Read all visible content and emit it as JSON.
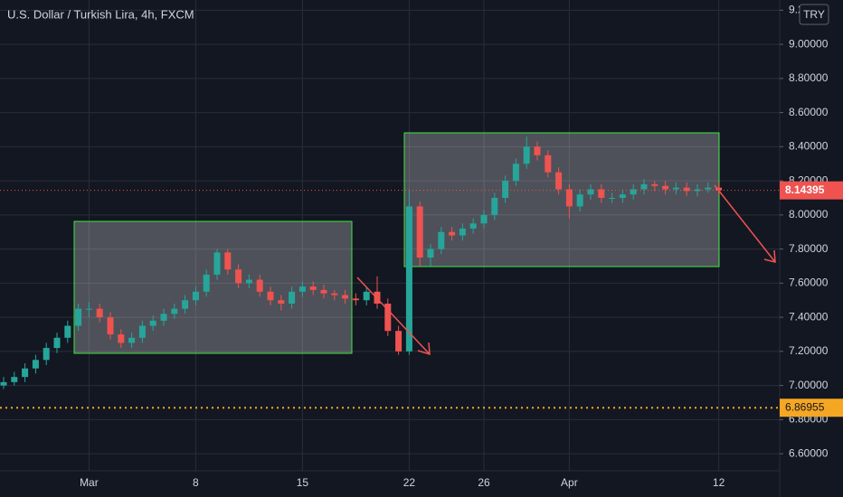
{
  "chart_data": {
    "type": "candlestick",
    "title": "U.S. Dollar / Turkish Lira, 4h, FXCM",
    "currency": "TRY",
    "categories": [
      null,
      null,
      null,
      null,
      null,
      null,
      null,
      null,
      "Mar",
      null,
      null,
      null,
      null,
      null,
      null,
      null,
      null,
      null,
      "8",
      null,
      null,
      null,
      null,
      null,
      null,
      null,
      null,
      null,
      "15",
      null,
      null,
      null,
      null,
      null,
      null,
      null,
      null,
      null,
      "22",
      null,
      null,
      null,
      null,
      null,
      null,
      "26",
      null,
      null,
      null,
      null,
      null,
      null,
      null,
      "Apr",
      null,
      null,
      null,
      null,
      null,
      null,
      null,
      null,
      null,
      null,
      null,
      null,
      null,
      "12"
    ],
    "open": [
      7.0,
      7.02,
      7.05,
      7.1,
      7.15,
      7.22,
      7.28,
      7.35,
      7.45,
      7.45,
      7.4,
      7.3,
      7.25,
      7.28,
      7.35,
      7.38,
      7.42,
      7.45,
      7.5,
      7.55,
      7.65,
      7.78,
      7.68,
      7.6,
      7.62,
      7.55,
      7.5,
      7.48,
      7.55,
      7.58,
      7.56,
      7.54,
      7.53,
      7.51,
      7.5,
      7.55,
      7.48,
      7.32,
      7.2,
      8.05,
      7.75,
      7.8,
      7.9,
      7.88,
      7.92,
      7.95,
      8.0,
      8.1,
      8.2,
      8.3,
      8.4,
      8.35,
      8.25,
      8.15,
      8.05,
      8.12,
      8.15,
      8.1,
      8.1,
      8.12,
      8.15,
      8.18,
      8.17,
      8.15,
      8.16,
      8.14,
      8.15,
      8.16
    ],
    "high": [
      7.05,
      7.08,
      7.13,
      7.18,
      7.25,
      7.31,
      7.38,
      7.48,
      7.49,
      7.48,
      7.43,
      7.33,
      7.31,
      7.38,
      7.41,
      7.45,
      7.48,
      7.53,
      7.58,
      7.68,
      7.8,
      7.8,
      7.71,
      7.65,
      7.65,
      7.58,
      7.53,
      7.58,
      7.61,
      7.61,
      7.59,
      7.56,
      7.56,
      7.54,
      7.58,
      7.64,
      7.51,
      7.35,
      8.15,
      8.08,
      7.83,
      7.93,
      7.93,
      7.95,
      7.98,
      8.03,
      8.13,
      8.23,
      8.33,
      8.46,
      8.43,
      8.38,
      8.28,
      8.18,
      8.15,
      8.18,
      8.18,
      8.13,
      8.15,
      8.18,
      8.21,
      8.2,
      8.2,
      8.19,
      8.19,
      8.18,
      8.19,
      8.19
    ],
    "low": [
      6.98,
      7.0,
      7.02,
      7.07,
      7.12,
      7.19,
      7.25,
      7.32,
      7.4,
      7.37,
      7.27,
      7.22,
      7.22,
      7.25,
      7.32,
      7.35,
      7.39,
      7.42,
      7.47,
      7.52,
      7.62,
      7.65,
      7.57,
      7.57,
      7.52,
      7.47,
      7.44,
      7.45,
      7.52,
      7.53,
      7.51,
      7.5,
      7.48,
      7.47,
      7.47,
      7.45,
      7.29,
      7.18,
      7.18,
      7.7,
      7.7,
      7.77,
      7.85,
      7.85,
      7.89,
      7.92,
      7.97,
      8.07,
      8.17,
      8.27,
      8.32,
      8.22,
      8.12,
      7.98,
      8.02,
      8.09,
      8.07,
      8.07,
      8.07,
      8.09,
      8.12,
      8.14,
      8.12,
      8.12,
      8.11,
      8.11,
      8.13,
      8.12
    ],
    "close": [
      7.02,
      7.05,
      7.1,
      7.15,
      7.22,
      7.28,
      7.35,
      7.45,
      7.45,
      7.4,
      7.3,
      7.25,
      7.28,
      7.35,
      7.38,
      7.42,
      7.45,
      7.5,
      7.55,
      7.65,
      7.78,
      7.68,
      7.6,
      7.62,
      7.55,
      7.5,
      7.48,
      7.55,
      7.58,
      7.56,
      7.54,
      7.53,
      7.51,
      7.5,
      7.55,
      7.48,
      7.32,
      7.2,
      8.05,
      7.75,
      7.8,
      7.9,
      7.88,
      7.92,
      7.95,
      8.0,
      8.1,
      8.2,
      8.3,
      8.4,
      8.35,
      8.25,
      8.15,
      8.05,
      8.12,
      8.15,
      8.1,
      8.1,
      8.12,
      8.15,
      8.18,
      8.17,
      8.15,
      8.16,
      8.14,
      8.15,
      8.16,
      8.14395
    ],
    "up_color": "#26a69a",
    "down_color": "#ef5350",
    "ylim": [
      6.5,
      9.26
    ],
    "yticks": [
      {
        "value": 6.6,
        "label": "6.60000"
      },
      {
        "value": 6.8,
        "label": "6.80000"
      },
      {
        "value": 7.0,
        "label": "7.00000"
      },
      {
        "value": 7.2,
        "label": "7.20000"
      },
      {
        "value": 7.4,
        "label": "7.40000"
      },
      {
        "value": 7.6,
        "label": "7.60000"
      },
      {
        "value": 7.8,
        "label": "7.80000"
      },
      {
        "value": 8.0,
        "label": "8.00000"
      },
      {
        "value": 8.2,
        "label": "8.20000"
      },
      {
        "value": 8.4,
        "label": "8.40000"
      },
      {
        "value": 8.6,
        "label": "8.60000"
      },
      {
        "value": 8.8,
        "label": "8.80000"
      },
      {
        "value": 9.0,
        "label": "9.00000"
      },
      {
        "value": 9.2,
        "label": "9.20000"
      }
    ],
    "grid": true,
    "reference_line": {
      "value": 6.86955,
      "color": "#f5a623"
    }
  }
}
